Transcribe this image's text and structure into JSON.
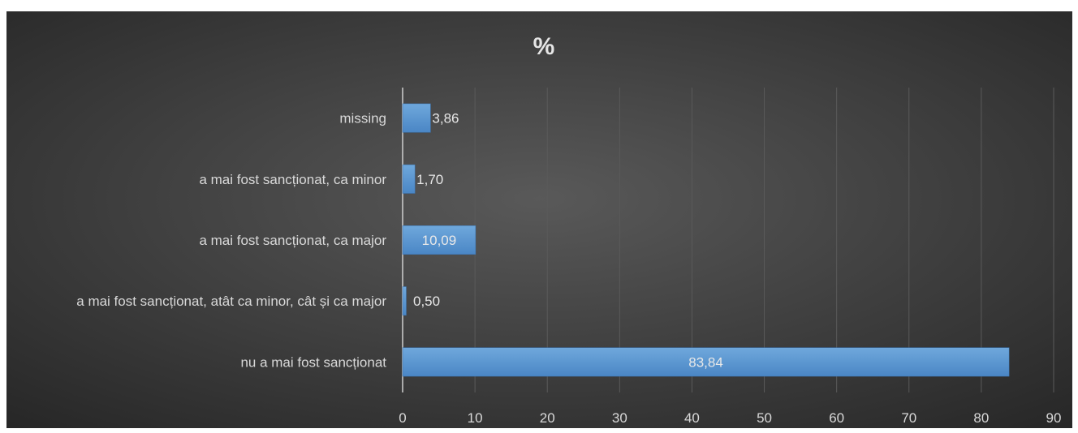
{
  "chart_data": {
    "type": "bar",
    "orientation": "horizontal",
    "title": "%",
    "xlabel": "",
    "ylabel": "",
    "categories": [
      "missing",
      "a mai fost sancționat, ca minor",
      "a mai fost sancționat, ca major",
      "a mai fost sancționat, atât ca minor, cât și ca major",
      "nu a mai fost sancționat"
    ],
    "values": [
      3.86,
      1.7,
      10.09,
      0.5,
      83.84
    ],
    "value_labels": [
      "3,86",
      "1,70",
      "10,09",
      "0,50",
      "83,84"
    ],
    "xlim": [
      0,
      90
    ],
    "xticks": [
      0,
      10,
      20,
      30,
      40,
      50,
      60,
      70,
      80,
      90
    ],
    "grid": true,
    "legend": "none",
    "colors": {
      "bar": "#5b9bd5",
      "background": "#404040",
      "text": "#d9d9d9",
      "gridline": "#5a5a5a"
    }
  }
}
